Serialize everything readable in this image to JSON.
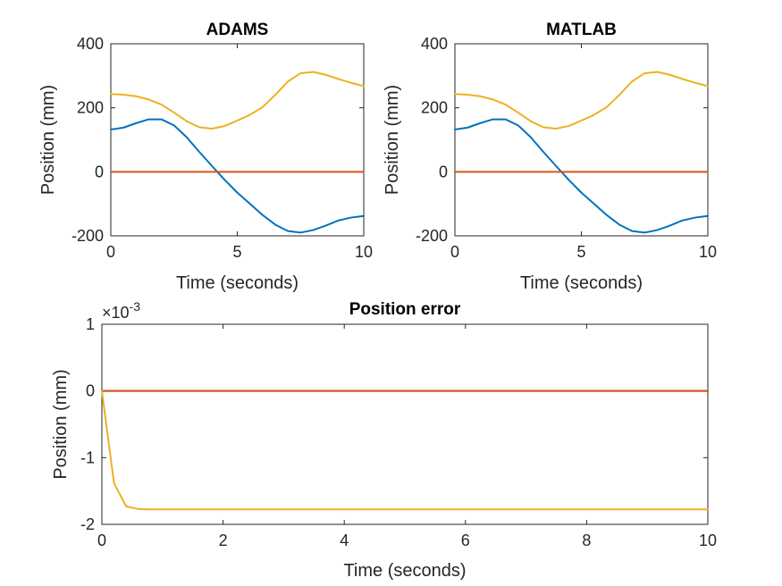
{
  "chart_data": [
    {
      "type": "line",
      "title": "ADAMS",
      "xlabel": "Time (seconds)",
      "ylabel": "Position (mm)",
      "xlim": [
        0,
        10
      ],
      "ylim": [
        -200,
        400
      ],
      "xticks": [
        "0",
        "5",
        "10"
      ],
      "yticks": [
        "-200",
        "0",
        "200",
        "400"
      ],
      "x": [
        0,
        0.5,
        1,
        1.5,
        2,
        2.5,
        3,
        3.5,
        4,
        4.5,
        5,
        5.5,
        6,
        6.5,
        7,
        7.5,
        8,
        8.5,
        9,
        9.5,
        10
      ],
      "series": [
        {
          "color": "#0072BD",
          "values": [
            132,
            138,
            152,
            164,
            164,
            145,
            108,
            62,
            18,
            -25,
            -65,
            -100,
            -135,
            -165,
            -185,
            -190,
            -182,
            -168,
            -152,
            -143,
            -138
          ]
        },
        {
          "color": "#D95319",
          "values": [
            0,
            0,
            0,
            0,
            0,
            0,
            0,
            0,
            0,
            0,
            0,
            0,
            0,
            0,
            0,
            0,
            0,
            0,
            0,
            0,
            0
          ]
        },
        {
          "color": "#EDB120",
          "values": [
            243,
            241,
            236,
            226,
            210,
            185,
            158,
            139,
            135,
            143,
            160,
            178,
            202,
            240,
            282,
            308,
            312,
            303,
            290,
            278,
            268
          ]
        }
      ]
    },
    {
      "type": "line",
      "title": "MATLAB",
      "xlabel": "Time (seconds)",
      "ylabel": "Position (mm)",
      "xlim": [
        0,
        10
      ],
      "ylim": [
        -200,
        400
      ],
      "xticks": [
        "0",
        "5",
        "10"
      ],
      "yticks": [
        "-200",
        "0",
        "200",
        "400"
      ],
      "x": [
        0,
        0.5,
        1,
        1.5,
        2,
        2.5,
        3,
        3.5,
        4,
        4.5,
        5,
        5.5,
        6,
        6.5,
        7,
        7.5,
        8,
        8.5,
        9,
        9.5,
        10
      ],
      "series": [
        {
          "color": "#0072BD",
          "values": [
            132,
            138,
            152,
            164,
            164,
            145,
            108,
            62,
            18,
            -25,
            -65,
            -100,
            -135,
            -165,
            -185,
            -190,
            -182,
            -168,
            -152,
            -143,
            -138
          ]
        },
        {
          "color": "#D95319",
          "values": [
            0,
            0,
            0,
            0,
            0,
            0,
            0,
            0,
            0,
            0,
            0,
            0,
            0,
            0,
            0,
            0,
            0,
            0,
            0,
            0,
            0
          ]
        },
        {
          "color": "#EDB120",
          "values": [
            243,
            241,
            236,
            226,
            210,
            185,
            158,
            139,
            135,
            143,
            160,
            178,
            202,
            240,
            282,
            308,
            312,
            303,
            290,
            278,
            268
          ]
        }
      ]
    },
    {
      "type": "line",
      "title": "Position error",
      "xlabel": "Time (seconds)",
      "ylabel": "Position (mm)",
      "y_exponent_label": "×10",
      "y_exponent_power": "-3",
      "xlim": [
        0,
        10
      ],
      "ylim": [
        -2,
        1
      ],
      "xticks": [
        "0",
        "2",
        "4",
        "6",
        "8",
        "10"
      ],
      "yticks": [
        "-2",
        "-1",
        "0",
        "1"
      ],
      "x": [
        0,
        0.2,
        0.4,
        0.6,
        0.8,
        1,
        2,
        4,
        6,
        8,
        10
      ],
      "series": [
        {
          "color": "#0072BD",
          "values": [
            0,
            0,
            0,
            0,
            0,
            0,
            0,
            0,
            0,
            0,
            0
          ]
        },
        {
          "color": "#D95319",
          "values": [
            0,
            0,
            0,
            0,
            0,
            0,
            0,
            0,
            0,
            0,
            0
          ]
        },
        {
          "color": "#EDB120",
          "values": [
            0,
            -1.38,
            -1.73,
            -1.77,
            -1.775,
            -1.775,
            -1.775,
            -1.775,
            -1.775,
            -1.775,
            -1.775
          ]
        }
      ]
    }
  ]
}
